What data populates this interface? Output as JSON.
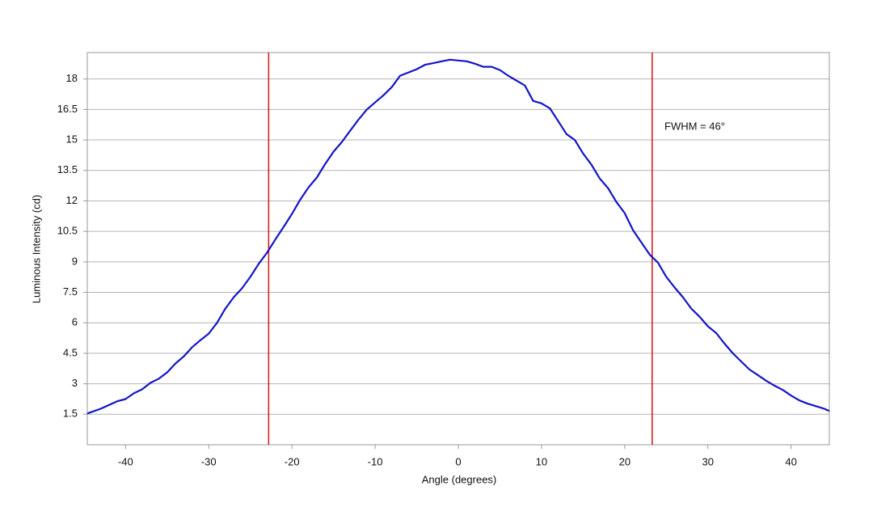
{
  "chart_data": {
    "type": "line",
    "x_label": "Angle (degrees)",
    "y_label": "Luminous Intensity (cd)",
    "annotation": "FWHM = 46°",
    "x": [
      -44.6,
      -43,
      -41,
      -40,
      -39,
      -38,
      -37,
      -36,
      -35,
      -34,
      -33,
      -32,
      -31,
      -30,
      -29,
      -28,
      -27,
      -26,
      -25,
      -24,
      -23,
      -22,
      -21,
      -20,
      -19,
      -18,
      -17,
      -16,
      -15,
      -14,
      -13,
      -12,
      -11,
      -10,
      -9,
      -8,
      -7,
      -6,
      -5,
      -4,
      -3,
      -2,
      -1,
      0,
      1,
      2,
      3,
      4,
      5,
      6,
      7,
      8,
      9,
      10,
      11,
      12,
      13,
      14,
      15,
      16,
      17,
      18,
      19,
      20,
      21,
      22,
      23,
      24,
      25,
      26,
      27,
      28,
      29,
      30,
      31,
      32,
      33,
      34,
      35,
      36,
      37,
      38,
      39,
      40,
      41,
      42,
      43,
      44,
      44.6
    ],
    "series": [
      {
        "color": "#1414c8",
        "values": [
          1.54,
          1.77,
          2.14,
          2.25,
          2.53,
          2.73,
          3.05,
          3.25,
          3.56,
          4.0,
          4.35,
          4.8,
          5.15,
          5.47,
          6.0,
          6.7,
          7.26,
          7.7,
          8.26,
          8.9,
          9.45,
          10.1,
          10.72,
          11.36,
          12.07,
          12.67,
          13.15,
          13.82,
          14.42,
          14.9,
          15.45,
          16.0,
          16.5,
          16.85,
          17.2,
          17.6,
          18.16,
          18.32,
          18.48,
          18.7,
          18.78,
          18.87,
          18.95,
          18.91,
          18.87,
          18.75,
          18.6,
          18.6,
          18.44,
          18.16,
          17.92,
          17.68,
          16.92,
          16.8,
          16.56,
          15.93,
          15.29,
          15.0,
          14.33,
          13.78,
          13.1,
          12.63,
          11.95,
          11.4,
          10.56,
          9.96,
          9.36,
          8.96,
          8.26,
          7.74,
          7.26,
          6.7,
          6.3,
          5.83,
          5.5,
          4.98,
          4.5,
          4.1,
          3.7,
          3.43,
          3.15,
          2.91,
          2.7,
          2.42,
          2.18,
          2.02,
          1.9,
          1.77,
          1.66
        ]
      }
    ],
    "reference_lines": {
      "x": [
        -22.8,
        23.3
      ],
      "color": "#d42020"
    },
    "xlim": [
      -44.6,
      44.6
    ],
    "ylim": [
      0,
      19.3
    ],
    "xticks": [
      -40,
      -30,
      -20,
      -10,
      0,
      10,
      20,
      30,
      40
    ],
    "yticks": [
      1.5,
      3,
      4.5,
      6,
      7.5,
      9,
      10.5,
      12,
      13.5,
      15,
      16.5,
      18
    ],
    "grid": true
  }
}
